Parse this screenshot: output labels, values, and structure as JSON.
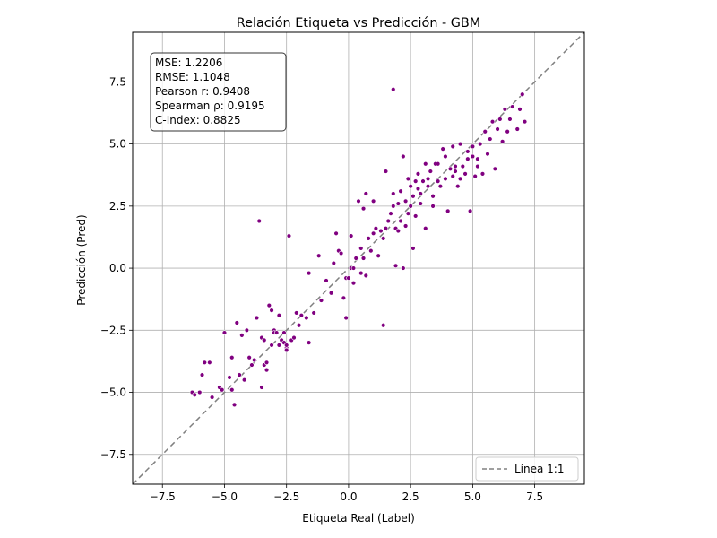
{
  "chart_data": {
    "type": "scatter",
    "title": "Relación Etiqueta vs Predicción - GBM",
    "xlabel": "Etiqueta Real (Label)",
    "ylabel": "Predicción (Pred)",
    "xlim": [
      -8.7,
      9.5
    ],
    "ylim": [
      -8.7,
      9.5
    ],
    "xticks": [
      -7.5,
      -5.0,
      -2.5,
      0.0,
      2.5,
      5.0,
      7.5
    ],
    "yticks": [
      -7.5,
      -5.0,
      -2.5,
      0.0,
      2.5,
      5.0,
      7.5
    ],
    "xtick_labels": [
      "−7.5",
      "−5.0",
      "−2.5",
      "0.0",
      "2.5",
      "5.0",
      "7.5"
    ],
    "ytick_labels": [
      "−7.5",
      "−5.0",
      "−2.5",
      "0.0",
      "2.5",
      "5.0",
      "7.5"
    ],
    "grid": true,
    "point_color": "#800080",
    "reference_line": {
      "name": "Línea 1:1",
      "color": "#808080",
      "style": "dashed"
    },
    "legend": {
      "position": "bottom-right",
      "entries": [
        "Línea 1:1"
      ]
    },
    "stats": [
      "MSE: 1.2206",
      "RMSE: 1.1048",
      "Pearson r: 0.9408",
      "Spearman ρ: 0.9195",
      "C-Index: 0.8825"
    ],
    "points": [
      [
        -6.3,
        -5.0
      ],
      [
        -6.2,
        -5.1
      ],
      [
        -6.0,
        -5.0
      ],
      [
        -5.9,
        -4.3
      ],
      [
        -5.8,
        -3.8
      ],
      [
        -5.6,
        -3.8
      ],
      [
        -5.5,
        -5.2
      ],
      [
        -5.2,
        -4.8
      ],
      [
        -5.1,
        -4.9
      ],
      [
        -5.0,
        -2.6
      ],
      [
        -4.8,
        -4.4
      ],
      [
        -4.7,
        -3.6
      ],
      [
        -4.7,
        -4.9
      ],
      [
        -4.6,
        -5.5
      ],
      [
        -4.5,
        -2.2
      ],
      [
        -4.4,
        -4.3
      ],
      [
        -4.3,
        -2.7
      ],
      [
        -4.2,
        -4.5
      ],
      [
        -4.1,
        -2.5
      ],
      [
        -4.0,
        -3.6
      ],
      [
        -3.9,
        -3.9
      ],
      [
        -3.8,
        -3.7
      ],
      [
        -3.7,
        -2.0
      ],
      [
        -3.6,
        1.9
      ],
      [
        -3.5,
        -2.8
      ],
      [
        -3.5,
        -4.8
      ],
      [
        -3.4,
        -3.9
      ],
      [
        -3.4,
        -2.9
      ],
      [
        -3.3,
        -3.8
      ],
      [
        -3.3,
        -4.1
      ],
      [
        -3.2,
        -1.5
      ],
      [
        -3.1,
        -1.7
      ],
      [
        -3.1,
        -3.1
      ],
      [
        -3.0,
        -2.5
      ],
      [
        -3.0,
        -2.6
      ],
      [
        -2.9,
        -2.6
      ],
      [
        -2.8,
        -3.1
      ],
      [
        -2.8,
        -1.9
      ],
      [
        -2.7,
        -2.9
      ],
      [
        -2.6,
        -2.6
      ],
      [
        -2.6,
        -3.0
      ],
      [
        -2.5,
        -3.2
      ],
      [
        -2.5,
        -3.3
      ],
      [
        -2.5,
        -3.1
      ],
      [
        -2.4,
        1.3
      ],
      [
        -2.3,
        -2.9
      ],
      [
        -2.2,
        -2.8
      ],
      [
        -2.1,
        -1.8
      ],
      [
        -2.0,
        -2.3
      ],
      [
        -1.9,
        -1.9
      ],
      [
        -1.7,
        -2.0
      ],
      [
        -1.6,
        -3.0
      ],
      [
        -1.6,
        -0.2
      ],
      [
        -1.4,
        -1.8
      ],
      [
        -1.2,
        0.5
      ],
      [
        -1.1,
        -1.3
      ],
      [
        -0.9,
        -0.5
      ],
      [
        -0.7,
        -1.0
      ],
      [
        -0.6,
        0.2
      ],
      [
        -0.5,
        1.4
      ],
      [
        -0.4,
        0.7
      ],
      [
        -0.3,
        0.6
      ],
      [
        -0.2,
        -1.2
      ],
      [
        -0.1,
        -2.0
      ],
      [
        -0.1,
        -0.4
      ],
      [
        0.0,
        -0.4
      ],
      [
        0.1,
        1.3
      ],
      [
        0.1,
        0.0
      ],
      [
        0.2,
        -0.6
      ],
      [
        0.2,
        0.0
      ],
      [
        0.3,
        0.4
      ],
      [
        0.4,
        2.7
      ],
      [
        0.5,
        0.8
      ],
      [
        0.5,
        -0.2
      ],
      [
        0.6,
        2.4
      ],
      [
        0.6,
        0.4
      ],
      [
        0.7,
        3.0
      ],
      [
        0.7,
        -0.3
      ],
      [
        0.8,
        1.2
      ],
      [
        0.9,
        0.7
      ],
      [
        1.0,
        1.4
      ],
      [
        1.0,
        2.7
      ],
      [
        1.1,
        1.6
      ],
      [
        1.2,
        0.5
      ],
      [
        1.3,
        1.5
      ],
      [
        1.4,
        -2.3
      ],
      [
        1.4,
        1.2
      ],
      [
        1.5,
        1.6
      ],
      [
        1.5,
        3.9
      ],
      [
        1.6,
        1.9
      ],
      [
        1.7,
        2.2
      ],
      [
        1.8,
        3.0
      ],
      [
        1.8,
        7.2
      ],
      [
        1.8,
        2.5
      ],
      [
        1.9,
        0.1
      ],
      [
        1.9,
        1.6
      ],
      [
        2.0,
        2.6
      ],
      [
        2.0,
        1.5
      ],
      [
        2.1,
        1.9
      ],
      [
        2.1,
        3.1
      ],
      [
        2.2,
        4.5
      ],
      [
        2.2,
        0.0
      ],
      [
        2.3,
        2.7
      ],
      [
        2.3,
        1.7
      ],
      [
        2.4,
        3.6
      ],
      [
        2.4,
        2.2
      ],
      [
        2.5,
        3.3
      ],
      [
        2.5,
        2.5
      ],
      [
        2.6,
        0.8
      ],
      [
        2.7,
        3.5
      ],
      [
        2.7,
        2.1
      ],
      [
        2.8,
        3.8
      ],
      [
        2.8,
        3.2
      ],
      [
        2.9,
        2.6
      ],
      [
        3.0,
        3.5
      ],
      [
        3.1,
        4.2
      ],
      [
        3.1,
        1.6
      ],
      [
        3.2,
        3.3
      ],
      [
        3.3,
        3.9
      ],
      [
        3.4,
        2.5
      ],
      [
        3.5,
        4.2
      ],
      [
        3.6,
        3.5
      ],
      [
        3.7,
        3.3
      ],
      [
        3.8,
        4.8
      ],
      [
        3.9,
        3.6
      ],
      [
        4.0,
        2.3
      ],
      [
        4.1,
        4.0
      ],
      [
        4.2,
        3.7
      ],
      [
        4.3,
        4.1
      ],
      [
        4.4,
        3.3
      ],
      [
        4.5,
        5.0
      ],
      [
        4.6,
        4.1
      ],
      [
        4.7,
        3.8
      ],
      [
        4.8,
        4.7
      ],
      [
        4.9,
        2.3
      ],
      [
        5.0,
        4.5
      ],
      [
        5.1,
        3.7
      ],
      [
        5.2,
        4.4
      ],
      [
        5.3,
        5.0
      ],
      [
        5.4,
        3.8
      ],
      [
        5.5,
        5.5
      ],
      [
        5.6,
        4.6
      ],
      [
        5.7,
        5.2
      ],
      [
        5.8,
        5.9
      ],
      [
        5.9,
        4.0
      ],
      [
        6.0,
        5.6
      ],
      [
        6.1,
        6.0
      ],
      [
        6.2,
        5.1
      ],
      [
        6.3,
        6.4
      ],
      [
        6.4,
        5.5
      ],
      [
        6.5,
        6.0
      ],
      [
        6.6,
        6.5
      ],
      [
        6.8,
        5.6
      ],
      [
        6.9,
        6.4
      ],
      [
        7.0,
        7.0
      ],
      [
        7.1,
        5.9
      ],
      [
        3.2,
        3.6
      ],
      [
        3.6,
        4.2
      ],
      [
        4.2,
        4.9
      ],
      [
        4.8,
        4.4
      ],
      [
        5.2,
        4.1
      ],
      [
        2.9,
        3.0
      ],
      [
        3.4,
        2.9
      ],
      [
        4.5,
        3.6
      ],
      [
        5.0,
        4.9
      ],
      [
        2.6,
        2.9
      ],
      [
        3.9,
        4.5
      ],
      [
        4.3,
        3.9
      ]
    ]
  }
}
